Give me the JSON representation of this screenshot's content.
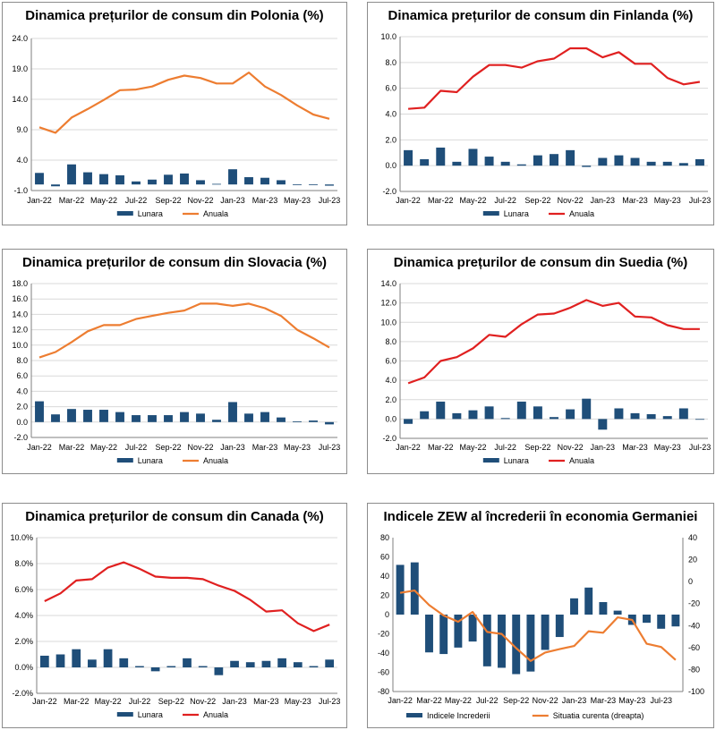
{
  "chart_data": [
    {
      "type": "bar+line",
      "title": "Dinamica prețurilor de consum din Polonia (%)",
      "x": [
        "Jan-22",
        "Feb-22",
        "Mar-22",
        "Apr-22",
        "May-22",
        "Jun-22",
        "Jul-22",
        "Aug-22",
        "Sep-22",
        "Oct-22",
        "Nov-22",
        "Dec-22",
        "Jan-23",
        "Feb-23",
        "Mar-23",
        "Apr-23",
        "May-23",
        "Jun-23",
        "Jul-23"
      ],
      "x_ticks": [
        "Jan-22",
        "Mar-22",
        "May-22",
        "Jul-22",
        "Sep-22",
        "Nov-22",
        "Jan-23",
        "Mar-23",
        "May-23",
        "Jul-23"
      ],
      "series": [
        {
          "name": "Lunara",
          "kind": "bar",
          "color": "#1f4e79",
          "values": [
            1.9,
            -0.3,
            3.3,
            2.0,
            1.7,
            1.5,
            0.5,
            0.8,
            1.6,
            1.8,
            0.7,
            0.1,
            2.5,
            1.2,
            1.1,
            0.7,
            0.0,
            0.0,
            -0.2
          ]
        },
        {
          "name": "Anuala",
          "kind": "line",
          "color": "#ed7d31",
          "values": [
            9.4,
            8.5,
            11.0,
            12.4,
            13.9,
            15.5,
            15.6,
            16.1,
            17.2,
            17.9,
            17.5,
            16.6,
            16.6,
            18.4,
            16.1,
            14.7,
            13.0,
            11.5,
            10.8
          ]
        }
      ],
      "ylim": [
        -1.0,
        24.0
      ],
      "y_ticks": [
        "24.0",
        "19.0",
        "14.0",
        "9.0",
        "4.0",
        "-1.0"
      ],
      "legend": "bottom",
      "grid": true
    },
    {
      "type": "bar+line",
      "title": "Dinamica prețurilor de consum din Finlanda (%)",
      "x": [
        "Jan-22",
        "Feb-22",
        "Mar-22",
        "Apr-22",
        "May-22",
        "Jun-22",
        "Jul-22",
        "Aug-22",
        "Sep-22",
        "Oct-22",
        "Nov-22",
        "Dec-22",
        "Jan-23",
        "Feb-23",
        "Mar-23",
        "Apr-23",
        "May-23",
        "Jun-23",
        "Jul-23"
      ],
      "x_ticks": [
        "Jan-22",
        "Mar-22",
        "May-22",
        "Jul-22",
        "Sep-22",
        "Nov-22",
        "Jan-23",
        "Mar-23",
        "May-23",
        "Jul-23"
      ],
      "series": [
        {
          "name": "Lunara",
          "kind": "bar",
          "color": "#1f4e79",
          "values": [
            1.2,
            0.5,
            1.4,
            0.3,
            1.3,
            0.7,
            0.3,
            0.1,
            0.8,
            0.9,
            1.2,
            -0.1,
            0.6,
            0.8,
            0.6,
            0.3,
            0.3,
            0.2,
            0.5
          ]
        },
        {
          "name": "Anuala",
          "kind": "line",
          "color": "#e02020",
          "values": [
            4.4,
            4.5,
            5.8,
            5.7,
            6.9,
            7.8,
            7.8,
            7.6,
            8.1,
            8.3,
            9.1,
            9.1,
            8.4,
            8.8,
            7.9,
            7.9,
            6.8,
            6.3,
            6.5
          ]
        }
      ],
      "ylim": [
        -2.0,
        10.0
      ],
      "y_ticks": [
        "10.0",
        "8.0",
        "6.0",
        "4.0",
        "2.0",
        "0.0",
        "-2.0"
      ],
      "legend": "bottom",
      "grid": true
    },
    {
      "type": "bar+line",
      "title": "Dinamica prețurilor de consum din Slovacia (%)",
      "x": [
        "Jan-22",
        "Feb-22",
        "Mar-22",
        "Apr-22",
        "May-22",
        "Jun-22",
        "Jul-22",
        "Aug-22",
        "Sep-22",
        "Oct-22",
        "Nov-22",
        "Dec-22",
        "Jan-23",
        "Feb-23",
        "Mar-23",
        "Apr-23",
        "May-23",
        "Jun-23",
        "Jul-23"
      ],
      "x_ticks": [
        "Jan-22",
        "Mar-22",
        "May-22",
        "Jul-22",
        "Sep-22",
        "Nov-22",
        "Jan-23",
        "Mar-23",
        "May-23",
        "Jul-23"
      ],
      "series": [
        {
          "name": "Lunara",
          "kind": "bar",
          "color": "#1f4e79",
          "values": [
            2.7,
            1.0,
            1.7,
            1.6,
            1.6,
            1.3,
            0.9,
            0.9,
            0.9,
            1.3,
            1.1,
            0.3,
            2.6,
            1.1,
            1.3,
            0.6,
            0.1,
            0.2,
            -0.3
          ]
        },
        {
          "name": "Anuala",
          "kind": "line",
          "color": "#ed7d31",
          "values": [
            8.4,
            9.1,
            10.4,
            11.8,
            12.6,
            12.6,
            13.4,
            13.8,
            14.2,
            14.5,
            15.4,
            15.4,
            15.1,
            15.4,
            14.8,
            13.8,
            12.0,
            10.9,
            9.7
          ]
        }
      ],
      "ylim": [
        -2.0,
        18.0
      ],
      "y_ticks": [
        "18.0",
        "16.0",
        "14.0",
        "12.0",
        "10.0",
        "8.0",
        "6.0",
        "4.0",
        "2.0",
        "0.0",
        "-2.0"
      ],
      "legend": "bottom",
      "grid": true
    },
    {
      "type": "bar+line",
      "title": "Dinamica prețurilor de consum din Suedia (%)",
      "x": [
        "Jan-22",
        "Feb-22",
        "Mar-22",
        "Apr-22",
        "May-22",
        "Jun-22",
        "Jul-22",
        "Aug-22",
        "Sep-22",
        "Oct-22",
        "Nov-22",
        "Dec-22",
        "Jan-23",
        "Feb-23",
        "Mar-23",
        "Apr-23",
        "May-23",
        "Jun-23",
        "Jul-23"
      ],
      "x_ticks": [
        "Jan-22",
        "Mar-22",
        "May-22",
        "Jul-22",
        "Sep-22",
        "Nov-22",
        "Jan-23",
        "Mar-23",
        "May-23",
        "Jul-23"
      ],
      "series": [
        {
          "name": "Lunara",
          "kind": "bar",
          "color": "#1f4e79",
          "values": [
            -0.5,
            0.8,
            1.8,
            0.6,
            0.9,
            1.3,
            0.1,
            1.8,
            1.3,
            0.2,
            1.0,
            2.1,
            -1.1,
            1.1,
            0.6,
            0.5,
            0.3,
            1.1,
            0.0
          ]
        },
        {
          "name": "Anuala",
          "kind": "line",
          "color": "#e02020",
          "values": [
            3.7,
            4.3,
            6.0,
            6.4,
            7.3,
            8.7,
            8.5,
            9.8,
            10.8,
            10.9,
            11.5,
            12.3,
            11.7,
            12.0,
            10.6,
            10.5,
            9.7,
            9.3,
            9.3
          ]
        }
      ],
      "ylim": [
        -2.0,
        14.0
      ],
      "y_ticks": [
        "14.0",
        "12.0",
        "10.0",
        "8.0",
        "6.0",
        "4.0",
        "2.0",
        "0.0",
        "-2.0"
      ],
      "legend": "bottom",
      "grid": true
    },
    {
      "type": "bar+line",
      "title": "Dinamica prețurilor de consum din Canada (%)",
      "x": [
        "Jan-22",
        "Feb-22",
        "Mar-22",
        "Apr-22",
        "May-22",
        "Jun-22",
        "Jul-22",
        "Aug-22",
        "Sep-22",
        "Oct-22",
        "Nov-22",
        "Dec-22",
        "Jan-23",
        "Feb-23",
        "Mar-23",
        "Apr-23",
        "May-23",
        "Jun-23",
        "Jul-23"
      ],
      "x_ticks": [
        "Jan-22",
        "Mar-22",
        "May-22",
        "Jul-22",
        "Sep-22",
        "Nov-22",
        "Jan-23",
        "Mar-23",
        "May-23",
        "Jul-23"
      ],
      "series": [
        {
          "name": "Lunara",
          "kind": "bar",
          "color": "#1f4e79",
          "values": [
            0.9,
            1.0,
            1.4,
            0.6,
            1.4,
            0.7,
            0.1,
            -0.3,
            0.1,
            0.7,
            0.1,
            -0.6,
            0.5,
            0.4,
            0.5,
            0.7,
            0.4,
            0.1,
            0.6
          ]
        },
        {
          "name": "Anuala",
          "kind": "line",
          "color": "#e02020",
          "values": [
            5.1,
            5.7,
            6.7,
            6.8,
            7.7,
            8.1,
            7.6,
            7.0,
            6.9,
            6.9,
            6.8,
            6.3,
            5.9,
            5.2,
            4.3,
            4.4,
            3.4,
            2.8,
            3.3
          ]
        }
      ],
      "ylim": [
        -2.0,
        10.0
      ],
      "y_ticks": [
        "10.0%",
        "8.0%",
        "6.0%",
        "4.0%",
        "2.0%",
        "0.0%",
        "-2.0%"
      ],
      "legend": "bottom",
      "grid": true
    },
    {
      "type": "bar+line-dual-axis",
      "title": "Indicele ZEW al încrederii în economia Germaniei",
      "x": [
        "Jan-22",
        "Feb-22",
        "Mar-22",
        "Apr-22",
        "May-22",
        "Jun-22",
        "Jul-22",
        "Aug-22",
        "Sep-22",
        "Oct-22",
        "Nov-22",
        "Dec-22",
        "Jan-23",
        "Feb-23",
        "Mar-23",
        "Apr-23",
        "May-23",
        "Jun-23",
        "Jul-23",
        "Aug-23"
      ],
      "x_ticks": [
        "Jan-22",
        "Mar-22",
        "May-22",
        "Jul-22",
        "Sep-22",
        "Nov-22",
        "Jan-23",
        "Mar-23",
        "May-23",
        "Jul-23"
      ],
      "series": [
        {
          "name": "Indicele Increderii",
          "kind": "bar",
          "axis": "left",
          "color": "#1f4e79",
          "values": [
            51.7,
            54.3,
            -39.3,
            -41.0,
            -34.3,
            -28.0,
            -53.8,
            -55.3,
            -61.9,
            -59.2,
            -36.7,
            -23.3,
            16.9,
            28.1,
            13.0,
            4.1,
            -10.7,
            -8.5,
            -14.7,
            -12.3
          ]
        },
        {
          "name": "Situatia curenta (dreapta)",
          "kind": "line",
          "axis": "right",
          "color": "#ed7d31",
          "values": [
            -10.2,
            -8.1,
            -21.4,
            -30.8,
            -36.5,
            -27.6,
            -45.8,
            -47.6,
            -60.5,
            -72.2,
            -64.5,
            -61.4,
            -58.6,
            -45.1,
            -46.5,
            -32.5,
            -34.8,
            -56.5,
            -59.5,
            -71.3
          ]
        }
      ],
      "ylim": [
        -80,
        80
      ],
      "y_ticks": [
        "80",
        "60",
        "40",
        "20",
        "0",
        "-20",
        "-40",
        "-60",
        "-80"
      ],
      "y2lim": [
        -100,
        40
      ],
      "y2_ticks": [
        "40",
        "20",
        "0",
        "-20",
        "-40",
        "-60",
        "-80",
        "-100"
      ],
      "legend": "bottom",
      "grid": false
    }
  ]
}
